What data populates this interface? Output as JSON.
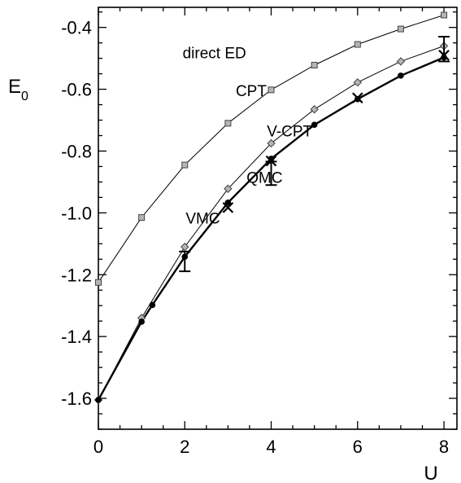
{
  "chart_data": {
    "type": "line",
    "xlabel": "U",
    "ylabel": {
      "main": "E",
      "sub": "0"
    },
    "xlim": [
      0,
      8.3
    ],
    "ylim": [
      -1.7,
      -0.335
    ],
    "xticks": [
      0,
      2,
      4,
      6,
      8
    ],
    "xtick_labels": [
      "0",
      "2",
      "4",
      "6",
      "8"
    ],
    "yticks": [
      -1.6,
      -1.4,
      -1.2,
      -1.0,
      -0.8,
      -0.6,
      -0.4
    ],
    "ytick_labels": [
      "-1.6",
      "-1.4",
      "-1.2",
      "-1.0",
      "-0.8",
      "-0.6",
      "-0.4"
    ],
    "grid": false,
    "series": [
      {
        "name": "direct ED",
        "marker": "square",
        "line": "thin",
        "x": [
          0,
          1,
          2,
          3,
          4,
          5,
          6,
          7,
          8
        ],
        "y": [
          -1.225,
          -1.015,
          -0.845,
          -0.71,
          -0.602,
          -0.522,
          -0.455,
          -0.405,
          -0.36
        ]
      },
      {
        "name": "CPT",
        "marker": "diamond",
        "line": "thin",
        "x": [
          0,
          1,
          2,
          3,
          4,
          5,
          6,
          7,
          8
        ],
        "y": [
          -1.605,
          -1.34,
          -1.11,
          -0.922,
          -0.775,
          -0.665,
          -0.578,
          -0.51,
          -0.46
        ]
      },
      {
        "name": "V-CPT",
        "marker": "circle",
        "line": "thick",
        "x": [
          0,
          1,
          1.25,
          2,
          3,
          4,
          5,
          6,
          7,
          8
        ],
        "y": [
          -1.605,
          -1.352,
          -1.298,
          -1.142,
          -0.967,
          -0.825,
          -0.715,
          -0.632,
          -0.556,
          -0.497
        ]
      },
      {
        "name": "VMC",
        "marker": "cross",
        "line": "none",
        "x": [
          3,
          4,
          6,
          8
        ],
        "y": [
          -0.983,
          -0.832,
          -0.628,
          -0.49
        ]
      },
      {
        "name": "QMC",
        "marker": "errorbar",
        "line": "none",
        "points": [
          {
            "x": 2,
            "y": -1.157,
            "err": 0.032
          },
          {
            "x": 4,
            "y": -0.872,
            "err": 0.038
          },
          {
            "x": 8,
            "y": -0.47,
            "err": 0.04
          }
        ]
      }
    ],
    "annotations": [
      {
        "text": "direct ED",
        "x": 1.95,
        "y": -0.5
      },
      {
        "text": "CPT",
        "x": 3.18,
        "y": -0.622
      },
      {
        "text": "V-CPT",
        "x": 3.9,
        "y": -0.753
      },
      {
        "text": "QMC",
        "x": 3.43,
        "y": -0.903
      },
      {
        "text": "VMC",
        "x": 2.02,
        "y": -1.035
      }
    ]
  }
}
